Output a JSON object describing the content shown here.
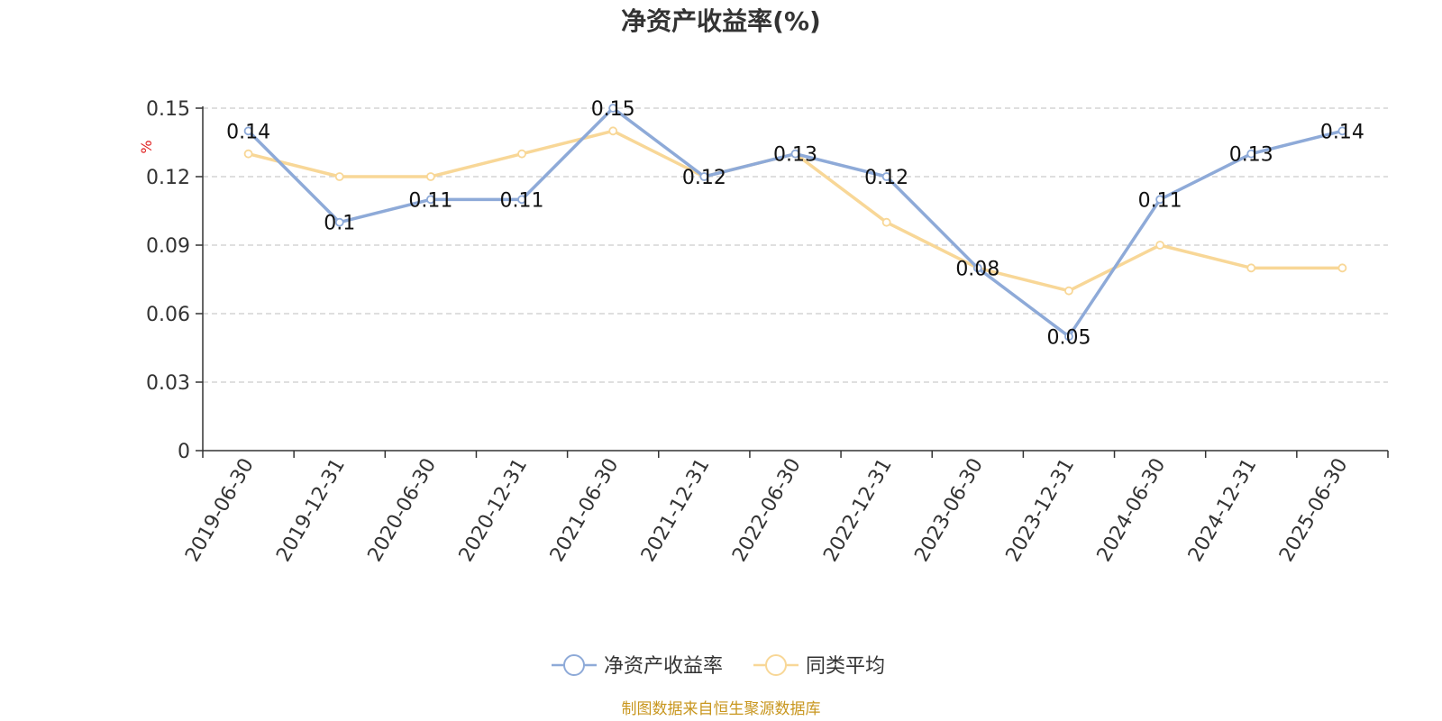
{
  "chart_data": {
    "type": "line",
    "title": "净资产收益率(%)",
    "ylabel": "%",
    "ylim": [
      0,
      0.15
    ],
    "yticks": [
      0,
      0.03,
      0.06,
      0.09,
      0.12,
      0.15
    ],
    "ytick_labels": [
      "0",
      "0.03",
      "0.06",
      "0.09",
      "0.12",
      "0.15"
    ],
    "grid": true,
    "legend_position": "bottom-center",
    "categories": [
      "2019-06-30",
      "2019-12-31",
      "2020-06-30",
      "2020-12-31",
      "2021-06-30",
      "2021-12-31",
      "2022-06-30",
      "2022-12-31",
      "2023-06-30",
      "2023-12-31",
      "2024-06-30",
      "2024-12-31",
      "2025-06-30"
    ],
    "series": [
      {
        "name": "净资产收益率",
        "color": "#8eaad8",
        "values": [
          0.14,
          0.1,
          0.11,
          0.11,
          0.15,
          0.12,
          0.13,
          0.12,
          0.08,
          0.05,
          0.11,
          0.13,
          0.14
        ],
        "labels": [
          "0.14",
          "0.1",
          "0.11",
          "0.11",
          "0.15",
          "0.12",
          "0.13",
          "0.12",
          "0.08",
          "0.05",
          "0.11",
          "0.13",
          "0.14"
        ]
      },
      {
        "name": "同类平均",
        "color": "#f8d797",
        "values": [
          0.13,
          0.12,
          0.12,
          0.13,
          0.14,
          0.12,
          0.13,
          0.1,
          0.08,
          0.07,
          0.09,
          0.08,
          0.08
        ]
      }
    ],
    "source": "制图数据来自恒生聚源数据库"
  }
}
